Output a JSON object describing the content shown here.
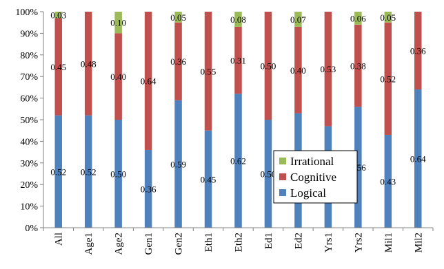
{
  "chart_data": {
    "type": "bar",
    "stacked": true,
    "percent_stacked": true,
    "title": "",
    "xlabel": "",
    "ylabel": "",
    "ylim": [
      0,
      100
    ],
    "y_ticks": [
      "0%",
      "10%",
      "20%",
      "30%",
      "40%",
      "50%",
      "60%",
      "70%",
      "80%",
      "90%",
      "100%"
    ],
    "grid": false,
    "legend_position": "lower-right",
    "categories": [
      "All",
      "Age1",
      "Age2",
      "Gen1",
      "Gen2",
      "Eth1",
      "Eth2",
      "Ed1",
      "Ed2",
      "Yrs1",
      "Yrs2",
      "Mil1",
      "Mil2"
    ],
    "series": [
      {
        "name": "Logical",
        "color": "#4f81bd",
        "values": [
          0.52,
          0.52,
          0.5,
          0.36,
          0.59,
          0.45,
          0.62,
          0.5,
          0.53,
          0.47,
          0.56,
          0.43,
          0.64
        ],
        "labels": [
          "0.52",
          "0.52",
          "0.50",
          "0.36",
          "0.59",
          "0.45",
          "0.62",
          "0.50",
          "0.53",
          "0.47",
          "0.56",
          "0.43",
          "0.64"
        ]
      },
      {
        "name": "Cognitive",
        "color": "#c0504d",
        "values": [
          0.45,
          0.48,
          0.4,
          0.64,
          0.36,
          0.55,
          0.31,
          0.5,
          0.4,
          0.53,
          0.38,
          0.52,
          0.36
        ],
        "labels": [
          "0.45",
          "0.48",
          "0.40",
          "0.64",
          "0.36",
          "0.55",
          "0.31",
          "0.50",
          "0.40",
          "0.53",
          "0.38",
          "0.52",
          "0.36"
        ]
      },
      {
        "name": "Irrational",
        "color": "#9bbb59",
        "values": [
          0.03,
          0.0,
          0.1,
          0.0,
          0.05,
          0.0,
          0.08,
          0.0,
          0.07,
          0.0,
          0.06,
          0.05,
          0.0
        ],
        "labels": [
          "0.03",
          "",
          "0.10",
          "",
          "0.05",
          "",
          "0.08",
          "",
          "0.07",
          "",
          "0.06",
          "0.05",
          ""
        ]
      }
    ],
    "legend_order": [
      "Irrational",
      "Cognitive",
      "Logical"
    ]
  }
}
